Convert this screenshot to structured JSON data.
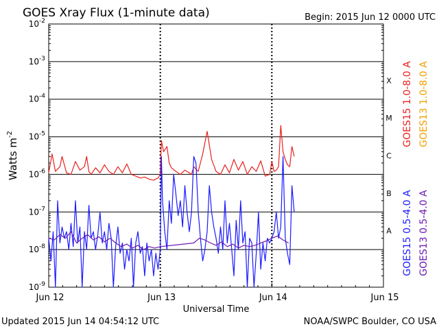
{
  "title": "GOES Xray Flux (1-minute data)",
  "begin": "Begin:  2015 Jun 12 0000 UTC",
  "ylabel_main": "Watts m",
  "ylabel_sup": "-2",
  "xlabel": "Universal Time",
  "footer_left": "Updated 2015 Jun 14 04:54:12 UTC",
  "footer_right": "NOAA/SWPC Boulder, CO USA",
  "colors": {
    "goes15_long": "#e8201c",
    "goes13_long": "#f0a000",
    "goes15_short": "#1a1aff",
    "goes13_short": "#6a1ab0"
  },
  "chart_data": {
    "type": "line",
    "title": "GOES Xray Flux (1-minute data)",
    "xlabel": "Universal Time",
    "ylabel": "Watts m-2",
    "y_scale": "log",
    "ylim": [
      1e-09,
      0.01
    ],
    "xlim_days": [
      0,
      3
    ],
    "x_ticks": [
      "Jun 12",
      "Jun 13",
      "Jun 14",
      "Jun 15"
    ],
    "y_ticks": [
      {
        "value": 1e-09,
        "mant": "10",
        "exp": "-9"
      },
      {
        "value": 1e-08,
        "mant": "10",
        "exp": "-8"
      },
      {
        "value": 1e-07,
        "mant": "10",
        "exp": "-7"
      },
      {
        "value": 1e-06,
        "mant": "10",
        "exp": "-6"
      },
      {
        "value": 1e-05,
        "mant": "10",
        "exp": "-5"
      },
      {
        "value": 0.0001,
        "mant": "10",
        "exp": "-4"
      },
      {
        "value": 0.001,
        "mant": "10",
        "exp": "-3"
      },
      {
        "value": 0.01,
        "mant": "10",
        "exp": "-2"
      }
    ],
    "flare_classes": [
      {
        "label": "A",
        "value": 1e-08
      },
      {
        "label": "B",
        "value": 1e-07
      },
      {
        "label": "C",
        "value": 1e-06
      },
      {
        "label": "M",
        "value": 1e-05
      },
      {
        "label": "X",
        "value": 0.0001
      }
    ],
    "legend": [
      {
        "text": "GOES15 1.0-8.0 A",
        "color": "#e8201c"
      },
      {
        "text": "GOES13 1.0-8.0 A",
        "color": "#f0a000"
      },
      {
        "text": "GOES15 0.5-4.0 A",
        "color": "#1a1aff"
      },
      {
        "text": "GOES13 0.5-4.0 A",
        "color": "#6a1ab0"
      }
    ],
    "series": [
      {
        "name": "GOES15 1.0-8.0 A",
        "color": "#e8201c",
        "x": [
          0.0,
          0.03,
          0.06,
          0.1,
          0.12,
          0.16,
          0.2,
          0.24,
          0.28,
          0.32,
          0.34,
          0.36,
          0.38,
          0.42,
          0.46,
          0.5,
          0.54,
          0.58,
          0.62,
          0.66,
          0.7,
          0.74,
          0.78,
          0.82,
          0.86,
          0.9,
          0.94,
          0.98,
          1.0,
          1.01,
          1.03,
          1.06,
          1.08,
          1.1,
          1.14,
          1.18,
          1.22,
          1.26,
          1.28,
          1.3,
          1.34,
          1.38,
          1.42,
          1.46,
          1.5,
          1.54,
          1.58,
          1.62,
          1.66,
          1.7,
          1.74,
          1.78,
          1.82,
          1.86,
          1.9,
          1.94,
          1.98,
          2.0,
          2.02,
          2.04,
          2.06,
          2.08,
          2.1,
          2.12,
          2.14,
          2.16,
          2.18,
          2.2
        ],
        "y": [
          1.1e-06,
          3.5e-06,
          1.2e-06,
          1.6e-06,
          3e-06,
          1.1e-06,
          1e-06,
          2.2e-06,
          1.3e-06,
          1.6e-06,
          3e-06,
          1.2e-06,
          1e-06,
          1.5e-06,
          1.1e-06,
          1.8e-06,
          1.2e-06,
          1e-06,
          1.6e-06,
          1.1e-06,
          1.9e-06,
          1e-06,
          9e-07,
          8e-07,
          8.5e-07,
          7.5e-07,
          7e-07,
          8e-07,
          1e-06,
          8e-06,
          4e-06,
          5.5e-06,
          2e-06,
          1.5e-06,
          1.2e-06,
          1e-06,
          1.3e-06,
          1.1e-06,
          1e-06,
          1.6e-06,
          1.2e-06,
          3.5e-06,
          1.4e-05,
          2.5e-06,
          1.2e-06,
          1e-06,
          1.8e-06,
          1.1e-06,
          2.5e-06,
          1.3e-06,
          2.2e-06,
          1e-06,
          1.6e-06,
          1.2e-06,
          2.3e-06,
          9e-07,
          1e-06,
          2.2e-06,
          1.2e-06,
          1.3e-06,
          1.6e-06,
          2e-05,
          4e-06,
          2.5e-06,
          1.8e-06,
          1.6e-06,
          5.5e-06,
          3e-06
        ]
      },
      {
        "name": "GOES15 0.5-4.0 A",
        "color": "#1a1aff",
        "x": [
          0.0,
          0.02,
          0.04,
          0.06,
          0.08,
          0.1,
          0.12,
          0.14,
          0.16,
          0.18,
          0.2,
          0.22,
          0.24,
          0.26,
          0.28,
          0.3,
          0.32,
          0.34,
          0.36,
          0.38,
          0.4,
          0.42,
          0.44,
          0.46,
          0.48,
          0.5,
          0.52,
          0.54,
          0.56,
          0.58,
          0.6,
          0.62,
          0.64,
          0.66,
          0.68,
          0.7,
          0.72,
          0.74,
          0.76,
          0.78,
          0.8,
          0.82,
          0.84,
          0.86,
          0.88,
          0.9,
          0.92,
          0.94,
          0.96,
          0.98,
          1.0,
          1.01,
          1.02,
          1.04,
          1.06,
          1.08,
          1.1,
          1.12,
          1.14,
          1.16,
          1.18,
          1.2,
          1.22,
          1.24,
          1.26,
          1.28,
          1.3,
          1.32,
          1.34,
          1.36,
          1.38,
          1.4,
          1.42,
          1.44,
          1.46,
          1.48,
          1.5,
          1.52,
          1.54,
          1.56,
          1.58,
          1.6,
          1.62,
          1.64,
          1.66,
          1.68,
          1.7,
          1.72,
          1.74,
          1.76,
          1.78,
          1.8,
          1.82,
          1.84,
          1.86,
          1.88,
          1.9,
          1.92,
          1.94,
          1.96,
          1.98,
          2.0,
          2.02,
          2.04,
          2.06,
          2.08,
          2.1,
          2.12,
          2.14,
          2.16,
          2.18,
          2.2
        ],
        "y": [
          2e-08,
          5e-09,
          3e-08,
          1e-09,
          2e-07,
          1.5e-08,
          4e-08,
          2e-08,
          3e-08,
          1e-08,
          5e-08,
          1.2e-08,
          2e-07,
          1.5e-08,
          4e-08,
          1e-09,
          3e-08,
          1e-08,
          1.5e-07,
          2e-08,
          3e-08,
          1e-08,
          2.5e-08,
          1e-07,
          1.5e-08,
          3e-08,
          1e-08,
          5e-08,
          2e-08,
          1e-09,
          1.2e-08,
          4e-08,
          8e-09,
          1.5e-08,
          3e-09,
          1e-08,
          5e-09,
          2e-08,
          1e-09,
          1.5e-08,
          3e-08,
          8e-09,
          1.2e-08,
          2e-09,
          1.5e-08,
          5e-09,
          1e-08,
          2e-09,
          8e-09,
          3e-09,
          1e-08,
          3e-06,
          2e-07,
          3e-08,
          1e-08,
          2e-07,
          5e-08,
          1e-06,
          3e-07,
          8e-08,
          2e-07,
          4e-08,
          5e-07,
          1e-07,
          3e-08,
          1e-07,
          3e-06,
          2e-06,
          1e-07,
          2e-08,
          5e-09,
          1e-08,
          3e-08,
          5e-07,
          1e-07,
          4e-08,
          2e-08,
          8e-09,
          4e-08,
          1e-08,
          2e-07,
          1.5e-08,
          5e-08,
          1e-08,
          2e-09,
          6e-08,
          1e-08,
          2e-07,
          1.5e-08,
          3e-08,
          1e-09,
          2e-08,
          1.5e-08,
          1e-09,
          8e-09,
          1e-07,
          3e-09,
          1.5e-08,
          5e-09,
          2e-08,
          1.5e-08,
          2e-08,
          3e-08,
          1e-07,
          2e-08,
          4e-08,
          3e-06,
          2e-08,
          8e-09,
          4e-09,
          5e-07,
          1e-07
        ]
      },
      {
        "name": "GOES13 0.5-4.0 A",
        "color": "#6a1ab0",
        "x": [
          0.0,
          0.05,
          0.1,
          0.15,
          0.2,
          0.25,
          0.3,
          0.35,
          0.4,
          0.45,
          0.5,
          0.55,
          0.6,
          0.65,
          0.7,
          0.75,
          0.8,
          0.85,
          0.9,
          0.95,
          1.0,
          1.3,
          1.35,
          1.4,
          1.45,
          1.5,
          1.55,
          1.6,
          1.65,
          1.7,
          1.75,
          1.8,
          1.85,
          1.9,
          1.95,
          2.0,
          2.05,
          2.1,
          2.15
        ],
        "y": [
          2e-08,
          1.8e-08,
          2.5e-08,
          2e-08,
          3e-08,
          1.5e-08,
          2e-08,
          2.5e-08,
          1.8e-08,
          2.2e-08,
          1.6e-08,
          2e-08,
          1.5e-08,
          1.2e-08,
          1.4e-08,
          1.1e-08,
          1.3e-08,
          1e-08,
          1.2e-08,
          1.1e-08,
          1.2e-08,
          1.5e-08,
          2e-08,
          1.8e-08,
          1.5e-08,
          1.3e-08,
          1.6e-08,
          1.2e-08,
          1.4e-08,
          1.1e-08,
          1.3e-08,
          1.2e-08,
          1.3e-08,
          1.5e-08,
          1.7e-08,
          2e-08,
          2.3e-08,
          1.8e-08,
          1.5e-08
        ]
      }
    ]
  }
}
